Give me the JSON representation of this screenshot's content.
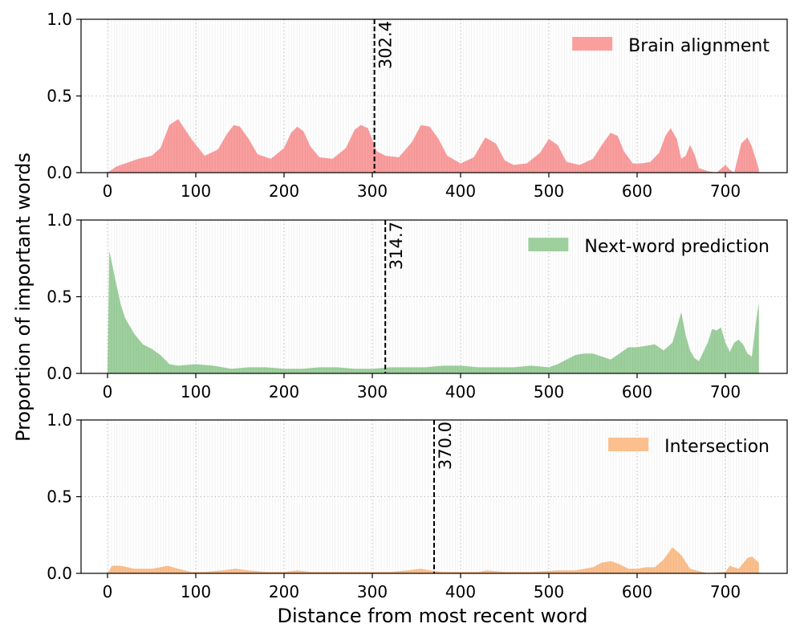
{
  "figure": {
    "ylabel": "Proportion of important words",
    "xlabel": "Distance from most recent word"
  },
  "chart_data": [
    {
      "type": "area",
      "legend": "Brain alignment",
      "color": "#fa9e9e",
      "marker_value": 302.4,
      "marker_label": "302.4",
      "xlim": [
        -30,
        770
      ],
      "ylim": [
        0,
        1
      ],
      "xticks": [
        "0",
        "100",
        "200",
        "300",
        "400",
        "500",
        "600",
        "700"
      ],
      "yticks": [
        "0.0",
        "0.5",
        "1.0"
      ],
      "grid": true,
      "legend_position": "top-right",
      "x": [
        0,
        10,
        20,
        35,
        50,
        60,
        70,
        80,
        95,
        110,
        125,
        135,
        143,
        150,
        160,
        170,
        185,
        200,
        208,
        215,
        222,
        230,
        240,
        255,
        270,
        280,
        287,
        295,
        305,
        315,
        330,
        345,
        355,
        365,
        375,
        385,
        400,
        415,
        428,
        440,
        450,
        460,
        475,
        490,
        500,
        510,
        520,
        535,
        550,
        560,
        570,
        578,
        585,
        595,
        605,
        615,
        625,
        632,
        638,
        645,
        650,
        655,
        660,
        665,
        670,
        680,
        690,
        700,
        705,
        710,
        718,
        725,
        730,
        735,
        738
      ],
      "y": [
        0.0,
        0.04,
        0.06,
        0.09,
        0.11,
        0.16,
        0.31,
        0.35,
        0.22,
        0.11,
        0.15,
        0.25,
        0.31,
        0.3,
        0.22,
        0.12,
        0.09,
        0.16,
        0.26,
        0.3,
        0.27,
        0.17,
        0.1,
        0.09,
        0.16,
        0.28,
        0.31,
        0.29,
        0.14,
        0.11,
        0.1,
        0.2,
        0.31,
        0.3,
        0.22,
        0.11,
        0.06,
        0.1,
        0.23,
        0.19,
        0.08,
        0.05,
        0.06,
        0.13,
        0.22,
        0.18,
        0.07,
        0.05,
        0.09,
        0.18,
        0.26,
        0.24,
        0.14,
        0.06,
        0.06,
        0.07,
        0.13,
        0.24,
        0.29,
        0.22,
        0.09,
        0.11,
        0.18,
        0.12,
        0.03,
        0.01,
        0.0,
        0.05,
        0.02,
        0.0,
        0.19,
        0.23,
        0.17,
        0.08,
        0.02
      ]
    },
    {
      "type": "area",
      "legend": "Next-word prediction",
      "color": "#9ed09e",
      "marker_value": 314.7,
      "marker_label": "314.7",
      "xlim": [
        -30,
        770
      ],
      "ylim": [
        0,
        1
      ],
      "xticks": [
        "0",
        "100",
        "200",
        "300",
        "400",
        "500",
        "600",
        "700"
      ],
      "yticks": [
        "0.0",
        "0.5",
        "1.0"
      ],
      "grid": true,
      "legend_position": "top-right",
      "x": [
        0,
        2,
        5,
        10,
        15,
        20,
        30,
        40,
        50,
        60,
        70,
        80,
        100,
        120,
        140,
        160,
        180,
        200,
        220,
        240,
        260,
        280,
        300,
        320,
        340,
        360,
        380,
        400,
        420,
        440,
        460,
        480,
        500,
        510,
        520,
        530,
        540,
        550,
        560,
        570,
        580,
        590,
        600,
        610,
        620,
        630,
        640,
        645,
        650,
        655,
        660,
        665,
        670,
        680,
        685,
        690,
        695,
        700,
        705,
        710,
        715,
        720,
        725,
        730,
        735,
        738
      ],
      "y": [
        0.0,
        0.8,
        0.72,
        0.58,
        0.45,
        0.36,
        0.26,
        0.19,
        0.16,
        0.12,
        0.06,
        0.05,
        0.06,
        0.05,
        0.03,
        0.04,
        0.04,
        0.03,
        0.03,
        0.04,
        0.04,
        0.03,
        0.03,
        0.04,
        0.04,
        0.04,
        0.05,
        0.05,
        0.04,
        0.04,
        0.04,
        0.05,
        0.04,
        0.06,
        0.09,
        0.12,
        0.13,
        0.13,
        0.11,
        0.09,
        0.13,
        0.17,
        0.17,
        0.18,
        0.19,
        0.15,
        0.2,
        0.3,
        0.4,
        0.25,
        0.15,
        0.1,
        0.08,
        0.2,
        0.29,
        0.28,
        0.3,
        0.2,
        0.14,
        0.2,
        0.22,
        0.19,
        0.13,
        0.11,
        0.35,
        0.46
      ]
    },
    {
      "type": "area",
      "legend": "Intersection",
      "color": "#fcc08e",
      "marker_value": 370.0,
      "marker_label": "370.0",
      "xlim": [
        -30,
        770
      ],
      "ylim": [
        0,
        1
      ],
      "xticks": [
        "0",
        "100",
        "200",
        "300",
        "400",
        "500",
        "600",
        "700"
      ],
      "yticks": [
        "0.0",
        "0.5",
        "1.0"
      ],
      "grid": true,
      "legend_position": "top-right",
      "x": [
        0,
        5,
        15,
        30,
        50,
        60,
        68,
        80,
        95,
        110,
        130,
        145,
        160,
        180,
        200,
        215,
        230,
        260,
        290,
        320,
        340,
        355,
        365,
        380,
        400,
        420,
        430,
        450,
        480,
        510,
        530,
        550,
        560,
        570,
        580,
        590,
        600,
        610,
        620,
        630,
        640,
        650,
        660,
        680,
        700,
        705,
        715,
        725,
        730,
        738
      ],
      "y": [
        0.0,
        0.05,
        0.05,
        0.03,
        0.03,
        0.04,
        0.05,
        0.03,
        0.01,
        0.01,
        0.02,
        0.03,
        0.02,
        0.01,
        0.01,
        0.02,
        0.01,
        0.01,
        0.01,
        0.01,
        0.02,
        0.03,
        0.02,
        0.01,
        0.01,
        0.01,
        0.02,
        0.01,
        0.01,
        0.02,
        0.02,
        0.04,
        0.07,
        0.08,
        0.06,
        0.03,
        0.03,
        0.04,
        0.04,
        0.09,
        0.17,
        0.12,
        0.03,
        0.0,
        0.01,
        0.05,
        0.03,
        0.1,
        0.11,
        0.07
      ]
    }
  ]
}
